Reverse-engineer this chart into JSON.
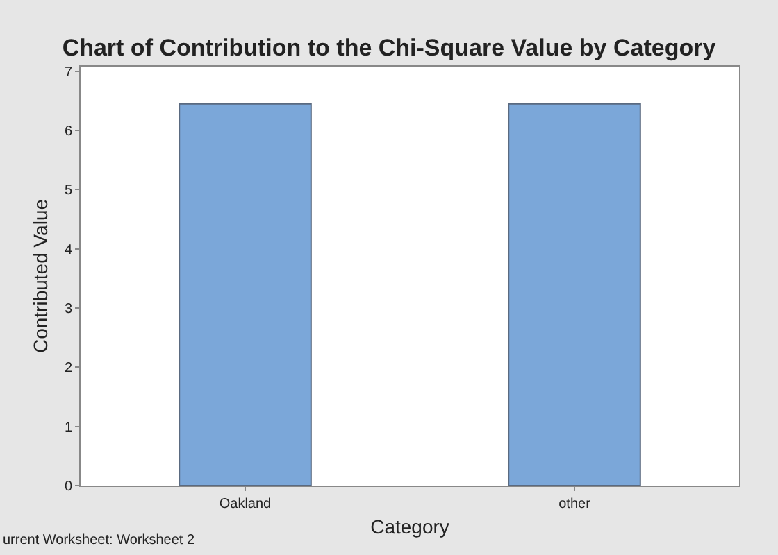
{
  "chart_data": {
    "type": "bar",
    "title": "Chart of Contribution to the Chi-Square Value by Category",
    "xlabel": "Category",
    "ylabel": "Contributed Value",
    "categories": [
      "Oakland",
      "other"
    ],
    "values": [
      6.45,
      6.45
    ],
    "color": "#7ba7d9",
    "ylim": [
      0,
      7.08
    ],
    "yticks": [
      0,
      1,
      2,
      3,
      4,
      5,
      6,
      7
    ],
    "annotations": [
      "urrent Worksheet: Worksheet 2"
    ]
  }
}
